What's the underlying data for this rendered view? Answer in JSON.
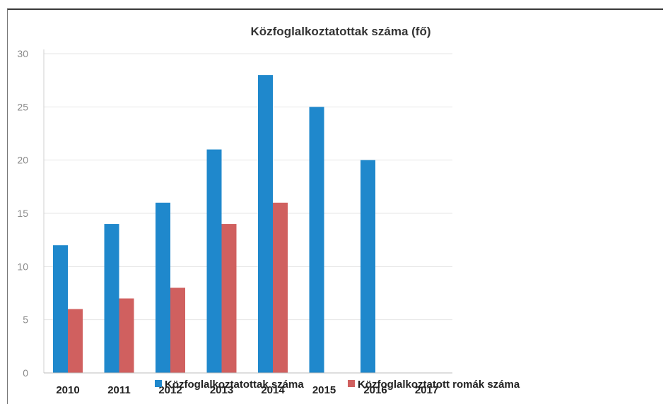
{
  "chart_data": {
    "type": "bar",
    "title": "Közfoglalkoztatottak száma (fő)",
    "categories": [
      "2010",
      "2011",
      "2012",
      "2013",
      "2014",
      "2015",
      "2016",
      "2017"
    ],
    "series": [
      {
        "name": "Közfoglalkoztatottak száma",
        "values": [
          12,
          14,
          16,
          21,
          28,
          25,
          20,
          null
        ]
      },
      {
        "name": "Közfoglalkoztatott romák száma",
        "values": [
          6,
          7,
          8,
          14,
          16,
          null,
          null,
          null
        ]
      }
    ],
    "yticks": [
      0,
      5,
      10,
      15,
      20,
      25,
      30
    ],
    "ylim": [
      0,
      30
    ],
    "grid": true,
    "legend": "bottom",
    "colors": [
      "#1f88cc",
      "#d0605f"
    ]
  }
}
